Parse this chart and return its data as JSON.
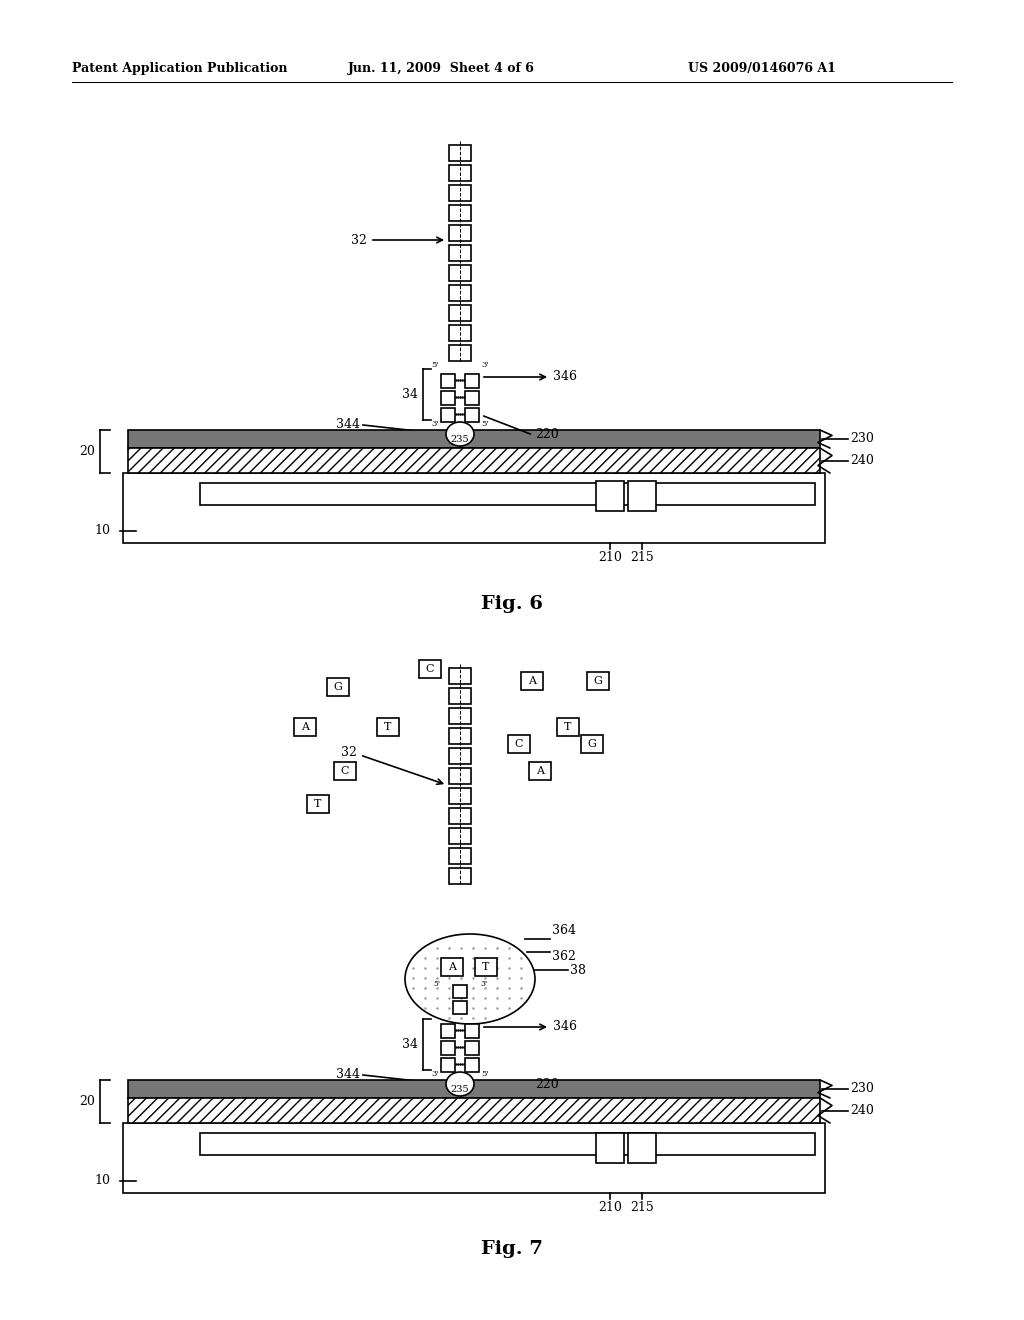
{
  "bg_color": "#ffffff",
  "line_color": "#000000",
  "header_left": "Patent Application Publication",
  "header_mid": "Jun. 11, 2009  Sheet 4 of 6",
  "header_right": "US 2009/0146076 A1",
  "fig6_title": "Fig. 6",
  "fig7_title": "Fig. 7",
  "dark_layer_color": "#777777",
  "dot_color": "#aaaaaa"
}
